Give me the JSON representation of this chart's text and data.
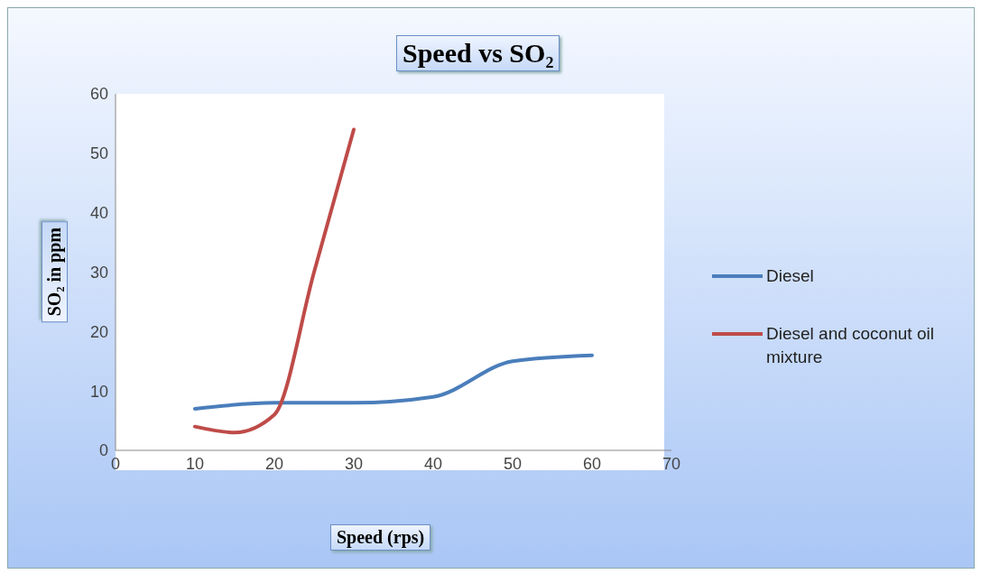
{
  "chart_data": {
    "type": "line",
    "title": "Speed vs SO₂",
    "xlabel": "Speed (rps)",
    "ylabel": "SO₂ in ppm",
    "xlim": [
      0,
      70
    ],
    "xticks": [
      0,
      10,
      20,
      30,
      40,
      50,
      60,
      70
    ],
    "ylim": [
      0,
      60
    ],
    "yticks": [
      0,
      10,
      20,
      30,
      40,
      50,
      60
    ],
    "grid": false,
    "legend": "right",
    "marker": "none",
    "line_style": "solid",
    "series": [
      {
        "name": "Diesel",
        "color": "#4a7ebb",
        "x": [
          10,
          20,
          30,
          40,
          50,
          60
        ],
        "values": [
          7,
          8,
          8,
          9,
          15,
          16
        ]
      },
      {
        "name": "Diesel and coconut oil mixture",
        "color": "#be4b48",
        "x": [
          10,
          15,
          20,
          25,
          30
        ],
        "values": [
          4,
          3,
          6,
          30,
          54
        ]
      }
    ]
  }
}
